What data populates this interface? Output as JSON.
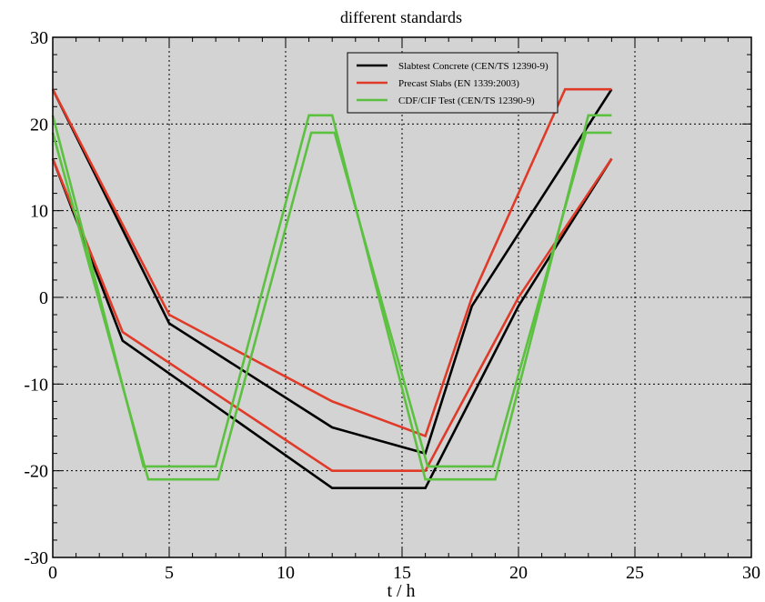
{
  "chart_data": {
    "type": "line",
    "title": "different standards",
    "xlabel": "t / h",
    "ylabel": "",
    "xlim": [
      0,
      30
    ],
    "ylim": [
      -30,
      30
    ],
    "x_ticks": [
      0,
      5,
      10,
      15,
      20,
      25,
      30
    ],
    "y_ticks": [
      30,
      20,
      10,
      0,
      -10,
      -20,
      -30
    ],
    "grid": true,
    "legend_position": "top-right",
    "colors": {
      "plot_background": "#d3d3d3",
      "slabtest": "#000000",
      "precast": "#e03a28",
      "cdf": "#5cc040"
    },
    "legend": [
      {
        "label": "Slabtest Concrete (CEN/TS 12390-9)",
        "color": "#000000"
      },
      {
        "label": "Precast Slabs (EN 1339:2003)",
        "color": "#e03a28"
      },
      {
        "label": "CDF/CIF Test (CEN/TS 12390-9)",
        "color": "#5cc040"
      }
    ],
    "series": [
      {
        "group": 0,
        "color": "#000000",
        "x": [
          0,
          5,
          12,
          16,
          18,
          24
        ],
        "y": [
          24,
          -3,
          -15,
          -18,
          -1,
          24
        ]
      },
      {
        "group": 0,
        "color": "#000000",
        "x": [
          0,
          3,
          12,
          16,
          20,
          24
        ],
        "y": [
          16,
          -5,
          -22,
          -22,
          -1,
          16
        ]
      },
      {
        "group": 1,
        "color": "#e03a28",
        "x": [
          0,
          5,
          12,
          16,
          18,
          22,
          24
        ],
        "y": [
          24,
          -2,
          -12,
          -16,
          0,
          24,
          24
        ]
      },
      {
        "group": 1,
        "color": "#e03a28",
        "x": [
          0,
          3,
          12,
          16,
          20,
          24
        ],
        "y": [
          16,
          -4,
          -20,
          -20,
          0,
          16
        ]
      },
      {
        "group": 2,
        "color": "#5cc040",
        "x": [
          0,
          3.9,
          7,
          11,
          12,
          16,
          19,
          23,
          24
        ],
        "y": [
          21,
          -19.5,
          -19.5,
          21,
          21,
          -21,
          -21,
          21,
          21
        ]
      },
      {
        "group": 2,
        "color": "#5cc040",
        "x": [
          0,
          4.1,
          7.1,
          11.1,
          12.1,
          16.1,
          18.9,
          22.9,
          24
        ],
        "y": [
          19,
          -21,
          -21,
          19,
          19,
          -19.5,
          -19.5,
          19,
          19
        ]
      }
    ]
  }
}
